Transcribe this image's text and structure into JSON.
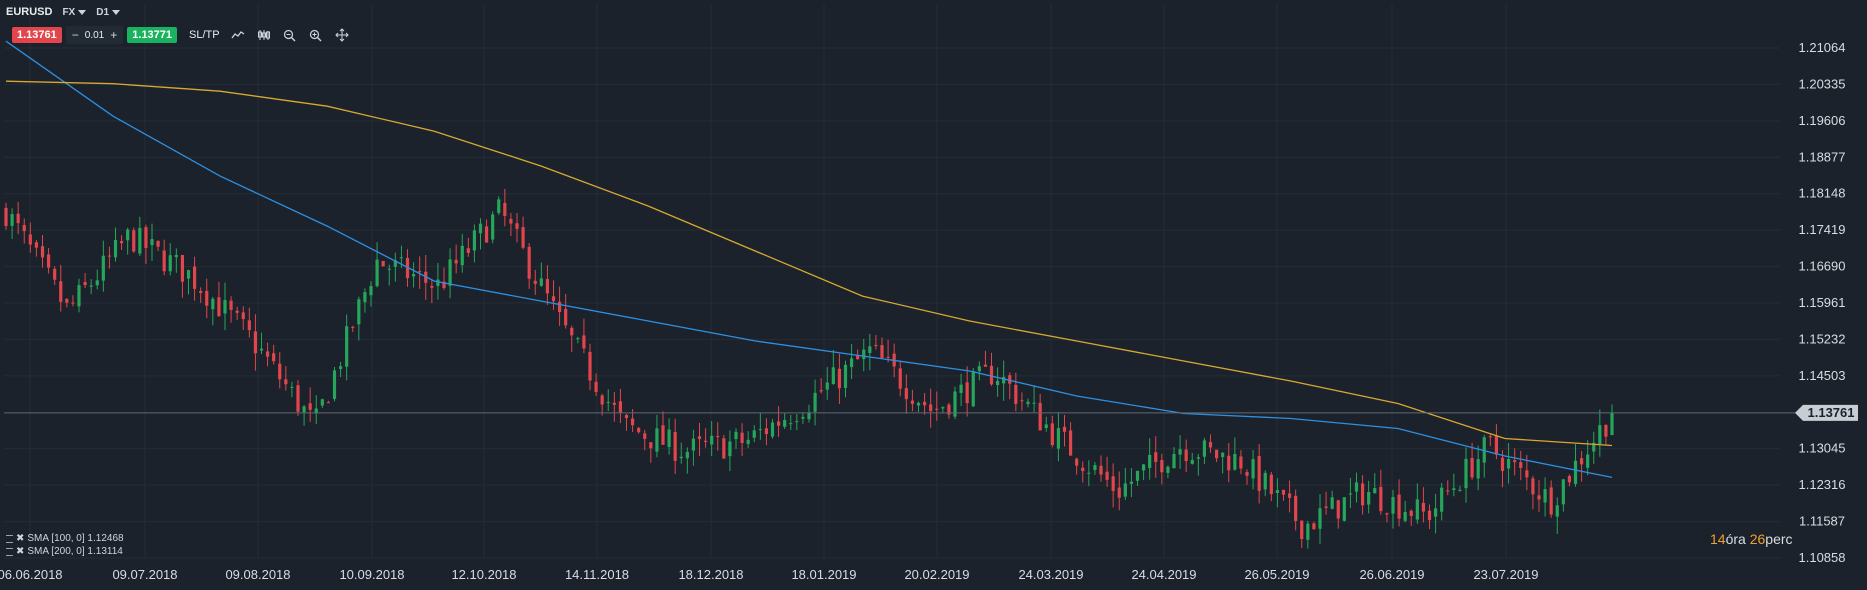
{
  "symbol": "EURUSD",
  "market_type": "FX",
  "timeframe": "D1",
  "trade": {
    "sell_price": "1.13761",
    "buy_price": "1.13771",
    "minus_label": "−",
    "quantity": "0.01",
    "plus_label": "+",
    "sltp_label": "SL/TP"
  },
  "tools": [
    "line-chart-icon",
    "candles-icon",
    "zoom-out-icon",
    "zoom-in-icon",
    "crosshair-icon"
  ],
  "indicators": [
    {
      "label": "SMA [100, 0] 1.12468",
      "color": "#2f8fe0"
    },
    {
      "label": "SMA [200, 0] 1.13114",
      "color": "#d9a830"
    }
  ],
  "timer": {
    "hours": "14",
    "hours_unit": "óra",
    "minutes": "26",
    "minutes_unit": "perc"
  },
  "colors": {
    "background": "#1b222b",
    "grid": "#242c36",
    "bull": "#26a65b",
    "bear": "#e2464c",
    "sma100": "#2f8fe0",
    "sma200": "#d9a830",
    "current_price_tag": "#c7cdd3"
  },
  "chart_data": {
    "type": "candlestick",
    "title": "EURUSD D1",
    "current_price": 1.13761,
    "y_ticks": [
      1.21064,
      1.20335,
      1.19606,
      1.18877,
      1.18148,
      1.17419,
      1.1669,
      1.15961,
      1.15232,
      1.14503,
      1.13761,
      1.13045,
      1.12316,
      1.11587,
      1.10858
    ],
    "ylim": [
      1.108,
      1.214
    ],
    "x_ticks": [
      "06.06.2018",
      "09.07.2018",
      "09.08.2018",
      "10.09.2018",
      "12.10.2018",
      "14.11.2018",
      "18.12.2018",
      "18.01.2019",
      "20.02.2019",
      "24.03.2019",
      "24.04.2019",
      "26.05.2019",
      "26.06.2019",
      "23.07.2019"
    ],
    "close_series_approx": [
      {
        "date": "06.06.2018",
        "close": 1.178
      },
      {
        "date": "20.06.2018",
        "close": 1.158
      },
      {
        "date": "09.07.2018",
        "close": 1.173
      },
      {
        "date": "25.07.2018",
        "close": 1.165
      },
      {
        "date": "09.08.2018",
        "close": 1.152
      },
      {
        "date": "15.08.2018",
        "close": 1.135
      },
      {
        "date": "28.08.2018",
        "close": 1.168
      },
      {
        "date": "10.09.2018",
        "close": 1.163
      },
      {
        "date": "24.09.2018",
        "close": 1.178
      },
      {
        "date": "12.10.2018",
        "close": 1.155
      },
      {
        "date": "31.10.2018",
        "close": 1.135
      },
      {
        "date": "14.11.2018",
        "close": 1.13
      },
      {
        "date": "30.11.2018",
        "close": 1.132
      },
      {
        "date": "18.12.2018",
        "close": 1.14
      },
      {
        "date": "10.01.2019",
        "close": 1.15
      },
      {
        "date": "18.01.2019",
        "close": 1.138
      },
      {
        "date": "31.01.2019",
        "close": 1.146
      },
      {
        "date": "20.02.2019",
        "close": 1.133
      },
      {
        "date": "07.03.2019",
        "close": 1.122
      },
      {
        "date": "24.03.2019",
        "close": 1.131
      },
      {
        "date": "10.04.2019",
        "close": 1.128
      },
      {
        "date": "24.04.2019",
        "close": 1.115
      },
      {
        "date": "10.05.2019",
        "close": 1.122
      },
      {
        "date": "26.05.2019",
        "close": 1.117
      },
      {
        "date": "10.06.2019",
        "close": 1.131
      },
      {
        "date": "18.06.2019",
        "close": 1.12
      },
      {
        "date": "21.06.2019",
        "close": 1.1376
      }
    ],
    "series": [
      {
        "name": "SMA [100, 0]",
        "last": 1.12468,
        "values_approx": [
          1.212,
          1.197,
          1.185,
          1.175,
          1.164,
          1.16,
          1.156,
          1.152,
          1.149,
          1.146,
          1.141,
          1.1375,
          1.1365,
          1.1345,
          1.129,
          1.1247
        ]
      },
      {
        "name": "SMA [200, 0]",
        "last": 1.13114,
        "values_approx": [
          1.204,
          1.2035,
          1.202,
          1.199,
          1.194,
          1.187,
          1.179,
          1.17,
          1.161,
          1.156,
          1.152,
          1.148,
          1.144,
          1.1395,
          1.1325,
          1.1311
        ]
      }
    ]
  }
}
